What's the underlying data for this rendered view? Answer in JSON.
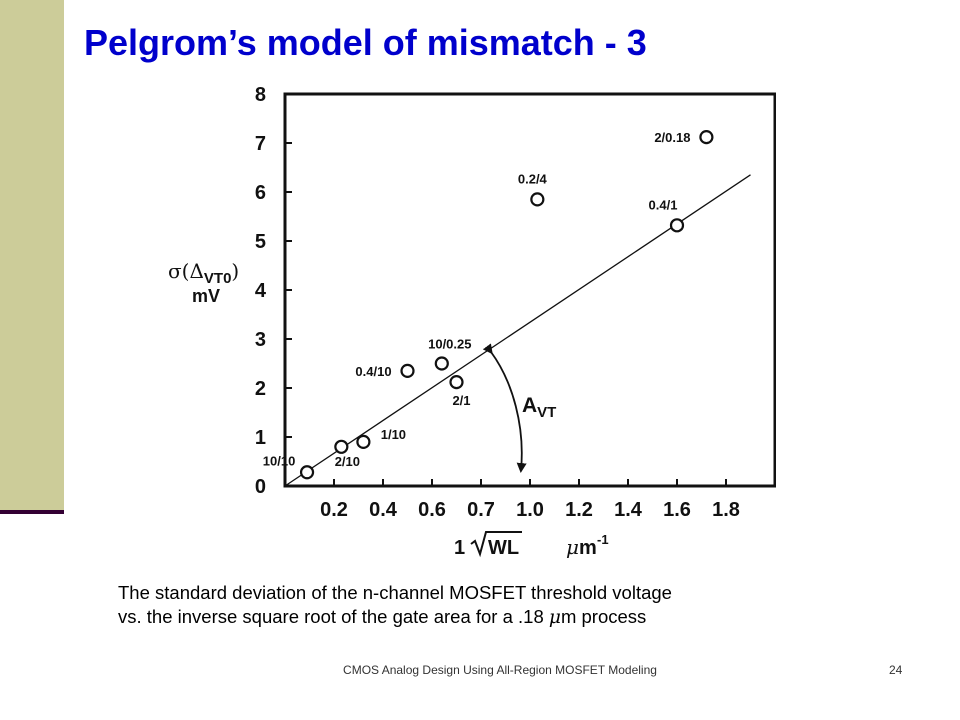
{
  "slide": {
    "title": "Pelgrom’s model of mismatch - 3",
    "caption_line1": "The standard deviation of the n-channel MOSFET threshold voltage",
    "caption_line2_before": "vs. the inverse square root of the gate area for a .18 ",
    "caption_mu": "μ",
    "caption_line2_after": "m process",
    "footer": "CMOS Analog Design Using All-Region MOSFET Modeling",
    "page_number": "24",
    "colors": {
      "title": "#0000cc",
      "sidebar": "#cccc99",
      "sidebar_line": "#330033"
    }
  },
  "chart_data": {
    "type": "scatter",
    "ylabel_sigma": "σ(Δ",
    "ylabel_sub": "VT0",
    "ylabel_close": ")",
    "ylabel_unit": "mV",
    "xlabel_one": "1",
    "xlabel_wl": "WL",
    "xlabel_mu": "μ",
    "xlabel_unit": "m",
    "xlabel_exp": "-1",
    "xticks": [
      "0.2",
      "0.4",
      "0.6",
      "0.7",
      "1.0",
      "1.2",
      "1.4",
      "1.6",
      "1.8"
    ],
    "yticks": [
      "0",
      "1",
      "2",
      "3",
      "4",
      "5",
      "6",
      "7",
      "8"
    ],
    "xlim": [
      0,
      2.0
    ],
    "ylim": [
      0,
      8
    ],
    "grid": false,
    "points": [
      {
        "x": 0.09,
        "y": 0.28,
        "label": "10/10"
      },
      {
        "x": 0.23,
        "y": 0.8,
        "label": "2/10"
      },
      {
        "x": 0.32,
        "y": 0.9,
        "label": "1/10"
      },
      {
        "x": 0.5,
        "y": 2.35,
        "label": "0.4/10"
      },
      {
        "x": 0.64,
        "y": 2.5,
        "label": "10/0.25"
      },
      {
        "x": 0.7,
        "y": 2.12,
        "label": "2/1"
      },
      {
        "x": 1.03,
        "y": 5.85,
        "label": "0.2/4"
      },
      {
        "x": 1.6,
        "y": 5.32,
        "label": "0.4/1"
      },
      {
        "x": 1.72,
        "y": 7.12,
        "label": "2/0.18"
      }
    ],
    "fit_line": {
      "x0": 0,
      "y0": 0,
      "x1": 1.9,
      "y1": 6.35
    },
    "annotation_main": "A",
    "annotation_sub": "VT"
  }
}
